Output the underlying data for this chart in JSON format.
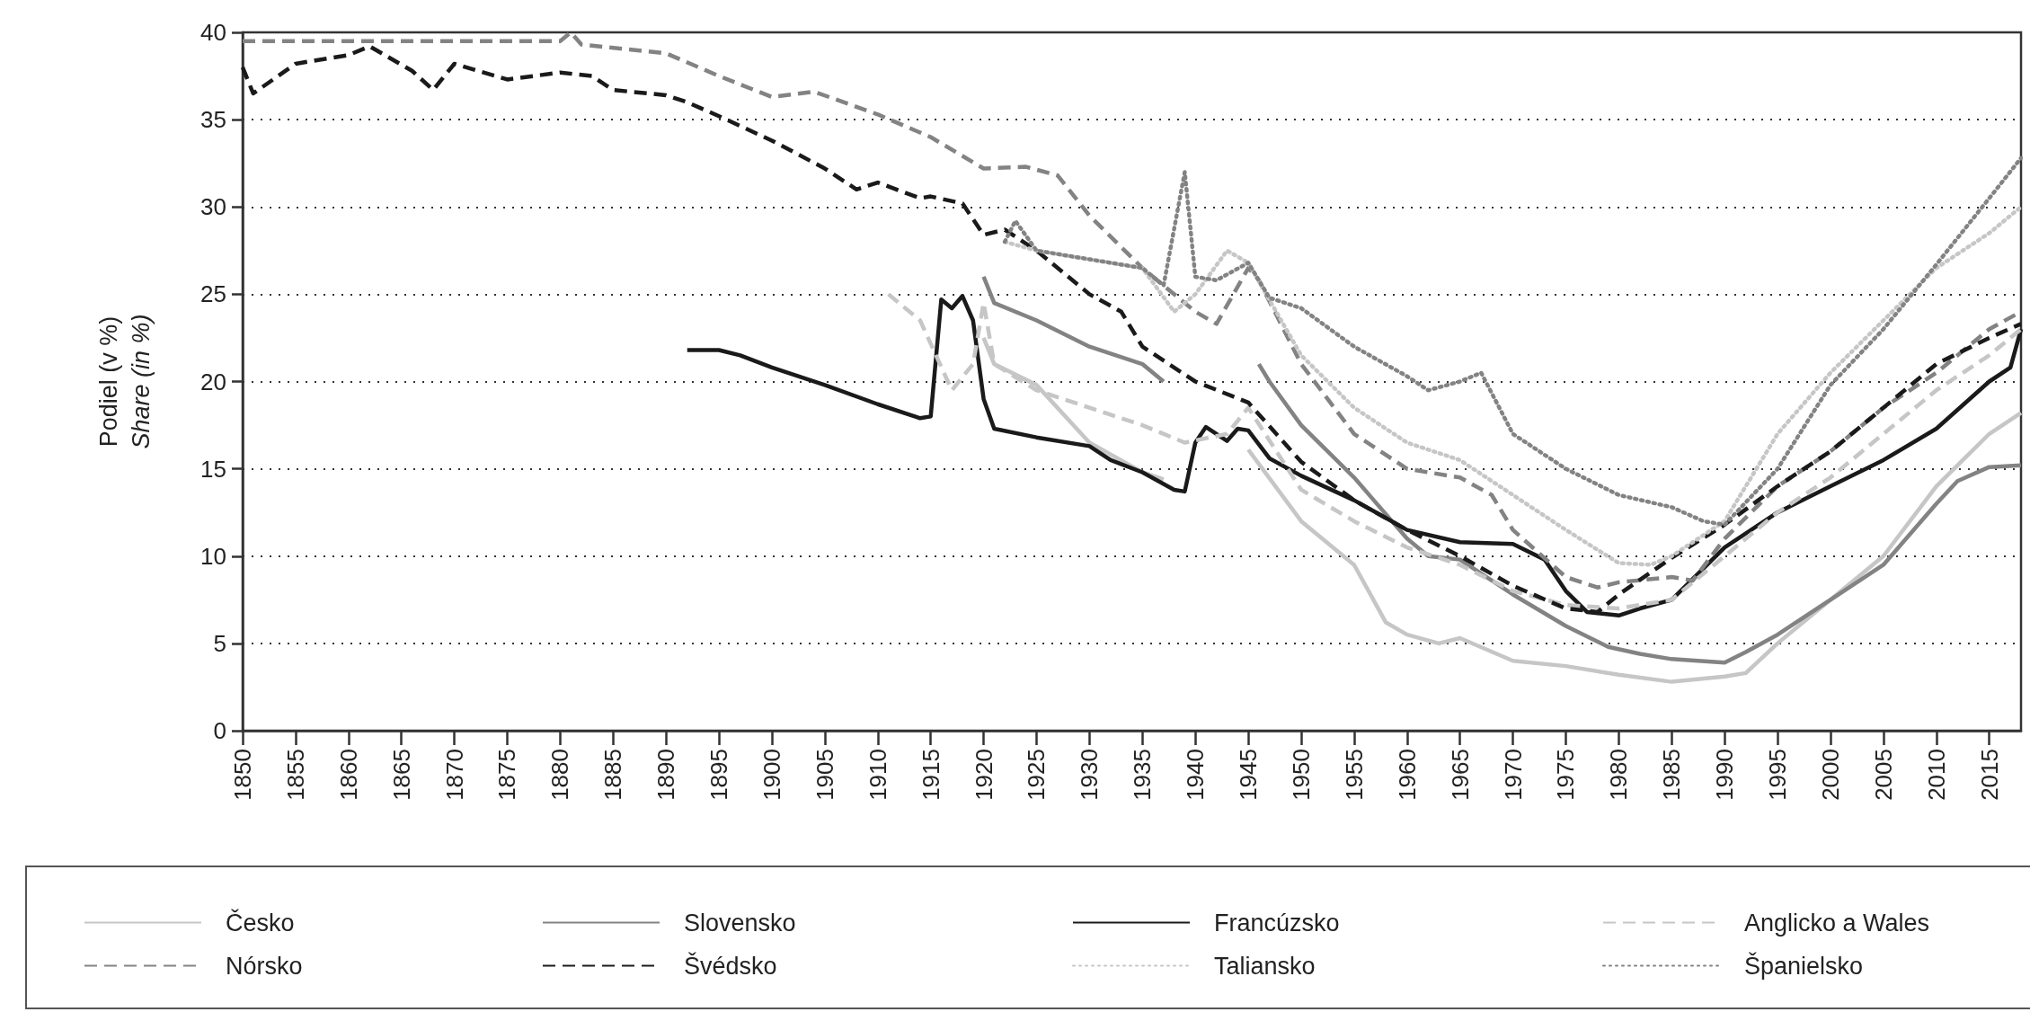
{
  "chart_data": {
    "type": "line",
    "ylabel": "Podiel (v %)\nShare (in %)",
    "xlim": [
      1850,
      2018
    ],
    "xticks": [
      1850,
      1855,
      1860,
      1865,
      1870,
      1875,
      1880,
      1885,
      1890,
      1895,
      1900,
      1905,
      1910,
      1915,
      1920,
      1925,
      1930,
      1935,
      1940,
      1945,
      1950,
      1955,
      1960,
      1965,
      1970,
      1975,
      1980,
      1985,
      1990,
      1995,
      2000,
      2005,
      2010,
      2015
    ],
    "ylim": [
      0,
      40
    ],
    "yticks": [
      0,
      5,
      10,
      15,
      20,
      25,
      30,
      35,
      40
    ],
    "grid": "y",
    "legend": "bottom",
    "series": [
      {
        "name": "Česko",
        "color": "#c6c6c6",
        "line_style": "solid",
        "x": [
          1920,
          1921,
          1925,
          1930,
          1935,
          1937,
          1941,
          1945,
          1950,
          1955,
          1958,
          1960,
          1963,
          1965,
          1970,
          1975,
          1980,
          1985,
          1990,
          1992,
          1995,
          2000,
          2005,
          2010,
          2015,
          2018
        ],
        "values": [
          22.5,
          21,
          19.8,
          16.5,
          14.8,
          14.4,
          null,
          16.1,
          12,
          9.5,
          6.2,
          5.5,
          5,
          5.3,
          4,
          3.7,
          3.2,
          2.8,
          3.1,
          3.3,
          5,
          7.5,
          10,
          14,
          17,
          18.2
        ]
      },
      {
        "name": "Slovensko",
        "color": "#838383",
        "line_style": "solid",
        "x": [
          1920,
          1921,
          1925,
          1930,
          1935,
          1937,
          1941,
          1946,
          1947,
          1950,
          1955,
          1960,
          1962,
          1965,
          1970,
          1975,
          1979,
          1982,
          1985,
          1990,
          1992,
          1995,
          2000,
          2005,
          2010,
          2012,
          2015,
          2018
        ],
        "values": [
          26,
          24.5,
          23.5,
          22,
          21,
          20,
          null,
          21,
          20,
          17.5,
          14.5,
          11,
          10,
          9.8,
          7.8,
          6,
          4.8,
          4.4,
          4.1,
          3.9,
          4.5,
          5.5,
          7.5,
          9.5,
          13,
          14.3,
          15.1,
          15.2
        ]
      },
      {
        "name": "Francúzsko",
        "color": "#1a1a1a",
        "line_style": "solid",
        "x": [
          1892,
          1895,
          1897,
          1900,
          1905,
          1910,
          1914,
          1915,
          1916,
          1917,
          1918,
          1919,
          1920,
          1921,
          1925,
          1930,
          1932,
          1935,
          1938,
          1939,
          1940,
          1941,
          1943,
          1944,
          1945,
          1947,
          1950,
          1955,
          1960,
          1965,
          1970,
          1973,
          1975,
          1977,
          1980,
          1982,
          1985,
          1990,
          1995,
          2000,
          2005,
          2010,
          2015,
          2017,
          2018
        ],
        "values": [
          21.8,
          21.8,
          21.5,
          20.8,
          19.8,
          18.7,
          17.9,
          18,
          24.7,
          24.2,
          24.9,
          23.5,
          19,
          17.3,
          16.8,
          16.3,
          15.5,
          14.8,
          13.8,
          13.7,
          16.5,
          17.4,
          16.6,
          17.3,
          17.2,
          15.6,
          14.6,
          13.2,
          11.5,
          10.8,
          10.7,
          9.8,
          8,
          6.8,
          6.6,
          7,
          7.5,
          10.5,
          12.5,
          14,
          15.5,
          17.3,
          20,
          20.8,
          23
        ]
      },
      {
        "name": "Anglicko a Wales",
        "color": "#c6c6c6",
        "line_style": "dashed",
        "x": [
          1911,
          1914,
          1917,
          1919,
          1920,
          1921,
          1925,
          1930,
          1935,
          1939,
          1943,
          1945,
          1950,
          1955,
          1960,
          1965,
          1970,
          1975,
          1980,
          1985,
          1990,
          1995,
          2000,
          2005,
          2010,
          2015,
          2018
        ],
        "values": [
          25,
          23.5,
          19.5,
          21,
          24.5,
          21,
          19.5,
          18.5,
          17.5,
          16.5,
          17,
          18.5,
          13.8,
          12,
          10.5,
          9.5,
          8,
          7.2,
          7,
          7.5,
          10,
          12.5,
          14.5,
          17,
          19.5,
          21.5,
          23
        ]
      },
      {
        "name": "Nórsko",
        "color": "#838383",
        "line_style": "dashed",
        "x": [
          1850,
          1880,
          1881,
          1882,
          1890,
          1895,
          1900,
          1904,
          1910,
          1915,
          1920,
          1924,
          1927,
          1930,
          1935,
          1940,
          1942,
          1945,
          1946,
          1950,
          1955,
          1960,
          1965,
          1968,
          1970,
          1975,
          1978,
          1980,
          1985,
          1987,
          1990,
          1995,
          2000,
          2005,
          2010,
          2015,
          2018
        ],
        "values": [
          39.5,
          39.5,
          40,
          39.3,
          38.8,
          37.5,
          36.3,
          36.6,
          35.3,
          34,
          32.2,
          32.3,
          31.8,
          29.5,
          26.5,
          24,
          23.3,
          26.5,
          25.8,
          21,
          17,
          15,
          14.5,
          13.5,
          11.5,
          8.8,
          8.2,
          8.5,
          8.8,
          8.6,
          11,
          14,
          16,
          18.5,
          20.5,
          23,
          24
        ]
      },
      {
        "name": "Švédsko",
        "color": "#1a1a1a",
        "line_style": "dashed",
        "x": [
          1850,
          1851,
          1855,
          1860,
          1862,
          1866,
          1868,
          1870,
          1875,
          1880,
          1883,
          1885,
          1890,
          1892,
          1895,
          1900,
          1905,
          1908,
          1910,
          1914,
          1915,
          1918,
          1920,
          1922,
          1925,
          1930,
          1933,
          1935,
          1940,
          1945,
          1950,
          1955,
          1960,
          1965,
          1970,
          1975,
          1978,
          1980,
          1985,
          1990,
          1995,
          2000,
          2005,
          2010,
          2015,
          2018
        ],
        "values": [
          38,
          36.5,
          38.2,
          38.7,
          39.2,
          37.8,
          36.7,
          38.2,
          37.3,
          37.7,
          37.5,
          36.7,
          36.4,
          36,
          35.2,
          33.8,
          32.2,
          31,
          31.4,
          30.5,
          30.6,
          30.2,
          28.4,
          28.7,
          27.5,
          25,
          24,
          22,
          20,
          18.8,
          15.4,
          13.2,
          11.5,
          10,
          8.3,
          7,
          6.8,
          7.8,
          9.9,
          11.8,
          14,
          16,
          18.5,
          21,
          22.5,
          23.3
        ]
      },
      {
        "name": "Taliansko",
        "color": "#c6c6c6",
        "line_style": "dotted",
        "x": [
          1922,
          1925,
          1930,
          1935,
          1938,
          1940,
          1943,
          1945,
          1950,
          1955,
          1960,
          1965,
          1970,
          1975,
          1980,
          1983,
          1985,
          1990,
          1995,
          2000,
          2005,
          2010,
          2015,
          2018
        ],
        "values": [
          28,
          27.5,
          27,
          26.5,
          24,
          25,
          27.5,
          26.8,
          21.5,
          18.5,
          16.5,
          15.5,
          13.5,
          11.5,
          9.6,
          9.5,
          10,
          12,
          17,
          20.5,
          23.5,
          26.5,
          28.5,
          30
        ]
      },
      {
        "name": "Španielsko",
        "color": "#838383",
        "line_style": "dotted",
        "x": [
          1922,
          1923,
          1925,
          1930,
          1935,
          1937,
          1939,
          1940,
          1942,
          1945,
          1947,
          1950,
          1955,
          1960,
          1962,
          1965,
          1967,
          1970,
          1975,
          1980,
          1985,
          1988,
          1990,
          1995,
          2000,
          2005,
          2010,
          2015,
          2018
        ],
        "values": [
          28,
          29.2,
          27.5,
          27,
          26.5,
          25.5,
          32,
          26,
          25.8,
          26.8,
          24.8,
          24.2,
          22,
          20.3,
          19.5,
          20,
          20.5,
          17,
          15,
          13.5,
          12.8,
          12,
          11.8,
          15,
          19.8,
          23,
          26.7,
          30.5,
          32.8
        ]
      }
    ]
  }
}
